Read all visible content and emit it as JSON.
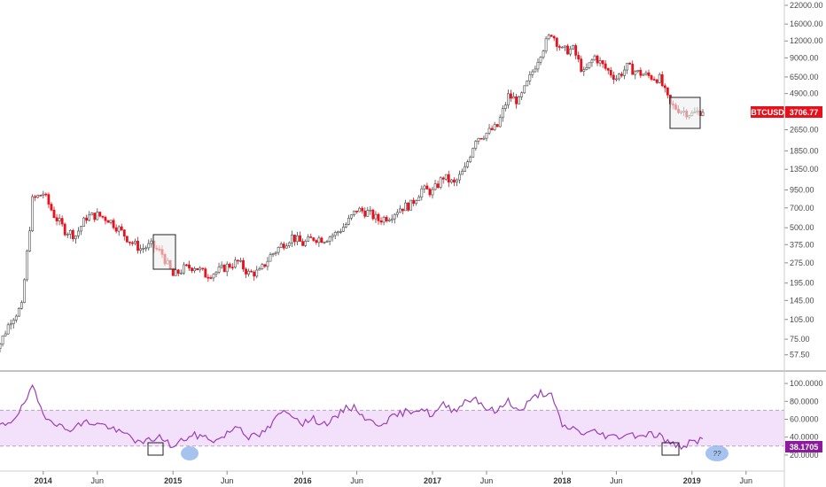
{
  "chart_data": [
    {
      "type": "candlestick",
      "scale": "log",
      "ylim": [
        50,
        22000
      ],
      "y_ticks": [
        22000,
        16000,
        12000,
        9000,
        6500,
        4900,
        3650,
        2650,
        1850,
        1350,
        950,
        700,
        500,
        375,
        275,
        195,
        145,
        105,
        75,
        57.5
      ],
      "y_tick_labels": [
        "22000.00",
        "16000.00",
        "12000.00",
        "9000.00",
        "6500.00",
        "4900.00",
        "3650.00",
        "2650.00",
        "1850.00",
        "1350.00",
        "950.00",
        "700.00",
        "500.00",
        "375.00",
        "275.00",
        "195.00",
        "145.00",
        "105.00",
        "75.00",
        "57.50"
      ],
      "x_tick_labels": [
        "2014",
        "Jun",
        "2015",
        "Jun",
        "2016",
        "Jun",
        "2017",
        "Jun",
        "2018",
        "Jun",
        "2019",
        "Jun"
      ],
      "symbol": "BTCUSD",
      "last_price": "3706.77",
      "up_color": "#4a4a4a",
      "down_color": "#e8101a",
      "series": [
        {
          "x": [
            "2013-09",
            "2013-10",
            "2013-11",
            "2013-12",
            "2014-01",
            "2014-02",
            "2014-03",
            "2014-04",
            "2014-05",
            "2014-06",
            "2014-07",
            "2014-08",
            "2014-09",
            "2014-10",
            "2014-11",
            "2014-12",
            "2015-01",
            "2015-02",
            "2015-03",
            "2015-04",
            "2015-05",
            "2015-06",
            "2015-07",
            "2015-08",
            "2015-09",
            "2015-10",
            "2015-11",
            "2015-12",
            "2016-01",
            "2016-02",
            "2016-03",
            "2016-04",
            "2016-05",
            "2016-06",
            "2016-07",
            "2016-08",
            "2016-09",
            "2016-10",
            "2016-11",
            "2016-12",
            "2017-01",
            "2017-02",
            "2017-03",
            "2017-04",
            "2017-05",
            "2017-06",
            "2017-07",
            "2017-08",
            "2017-09",
            "2017-10",
            "2017-11",
            "2017-12",
            "2018-01",
            "2018-02",
            "2018-03",
            "2018-04",
            "2018-05",
            "2018-06",
            "2018-07",
            "2018-08",
            "2018-09",
            "2018-10",
            "2018-11",
            "2018-12",
            "2019-01",
            "2019-02"
          ],
          "close": [
            70,
            105,
            130,
            800,
            900,
            620,
            480,
            440,
            600,
            620,
            580,
            490,
            400,
            350,
            370,
            320,
            220,
            250,
            260,
            225,
            235,
            260,
            280,
            230,
            235,
            310,
            370,
            430,
            380,
            420,
            415,
            450,
            530,
            680,
            650,
            570,
            610,
            700,
            740,
            960,
            920,
            1190,
            1050,
            1350,
            2300,
            2500,
            2800,
            4700,
            4300,
            6400,
            9900,
            13800,
            10200,
            10400,
            6900,
            9200,
            7500,
            6400,
            7700,
            7000,
            6600,
            6300,
            4000,
            3700,
            3450,
            3706.77
          ]
        }
      ],
      "highlight_boxes": [
        "2014 Sep-Oct consolidation",
        "2018 Dec - 2019 Feb consolidation"
      ]
    },
    {
      "type": "line",
      "ylim": [
        12,
        105
      ],
      "y_ticks": [
        100,
        80,
        60,
        40,
        20
      ],
      "y_tick_labels": [
        "100.0000",
        "80.0000",
        "60.0000",
        "40.0000",
        "20.0000"
      ],
      "band": [
        30,
        70
      ],
      "indicator_value": "38.1705",
      "line_color": "#9b3fb5",
      "band_fill": "#f3e0fb",
      "series": [
        {
          "x": [
            "2013-09",
            "2013-10",
            "2013-11",
            "2013-12",
            "2014-01",
            "2014-02",
            "2014-03",
            "2014-04",
            "2014-05",
            "2014-06",
            "2014-07",
            "2014-08",
            "2014-09",
            "2014-10",
            "2014-11",
            "2014-12",
            "2015-01",
            "2015-02",
            "2015-03",
            "2015-04",
            "2015-05",
            "2015-06",
            "2015-07",
            "2015-08",
            "2015-09",
            "2015-10",
            "2015-11",
            "2015-12",
            "2016-01",
            "2016-02",
            "2016-03",
            "2016-04",
            "2016-05",
            "2016-06",
            "2016-07",
            "2016-08",
            "2016-09",
            "2016-10",
            "2016-11",
            "2016-12",
            "2017-01",
            "2017-02",
            "2017-03",
            "2017-04",
            "2017-05",
            "2017-06",
            "2017-07",
            "2017-08",
            "2017-09",
            "2017-10",
            "2017-11",
            "2017-12",
            "2018-01",
            "2018-02",
            "2018-03",
            "2018-04",
            "2018-05",
            "2018-06",
            "2018-07",
            "2018-08",
            "2018-09",
            "2018-10",
            "2018-11",
            "2018-12",
            "2019-01",
            "2019-02"
          ],
          "values": [
            52,
            58,
            72,
            95,
            66,
            58,
            48,
            52,
            57,
            55,
            52,
            45,
            42,
            32,
            38,
            40,
            28,
            38,
            42,
            40,
            36,
            44,
            54,
            40,
            42,
            52,
            68,
            66,
            56,
            60,
            55,
            60,
            74,
            72,
            58,
            55,
            60,
            66,
            70,
            72,
            64,
            76,
            70,
            80,
            84,
            72,
            68,
            82,
            68,
            80,
            90,
            86,
            52,
            50,
            44,
            46,
            42,
            40,
            44,
            42,
            44,
            42,
            32,
            30,
            34,
            38.17
          ]
        }
      ],
      "annotations": [
        "??"
      ]
    }
  ]
}
